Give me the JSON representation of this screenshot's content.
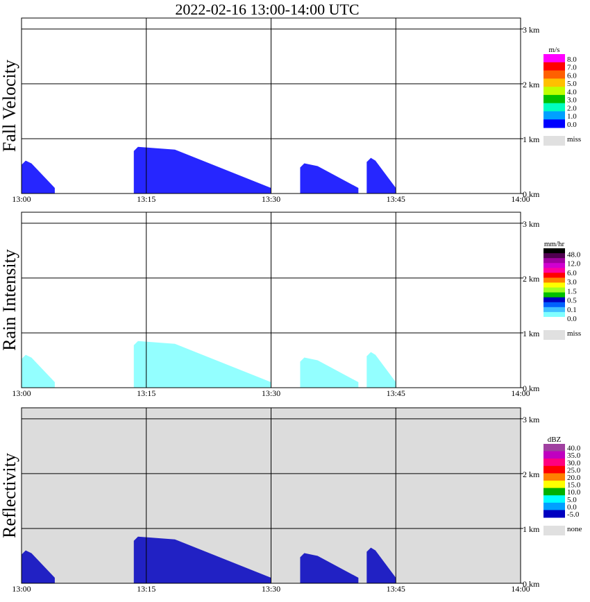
{
  "title": "2022-02-16  13:00-14:00 UTC",
  "chart_data": [
    {
      "type": "heatmap",
      "title": "Fall Velocity",
      "ylabel": "Fall Velocity",
      "x_ticks": [
        "13:00",
        "13:15",
        "13:30",
        "13:45",
        "14:00"
      ],
      "y_ticks": [
        "0 km",
        "1 km",
        "2 km",
        "3 km"
      ],
      "xlim_minutes": [
        0,
        60
      ],
      "ylim_km": [
        0,
        3.2
      ],
      "background": "#ffffff",
      "legend": {
        "unit": "m/s",
        "labels": [
          "8.0",
          "7.0",
          "6.0",
          "5.0",
          "4.0",
          "3.0",
          "2.0",
          "1.0",
          "0.0"
        ],
        "colors": [
          "#ff00ff",
          "#ff0000",
          "#ff6000",
          "#ffc000",
          "#c0ff00",
          "#00c000",
          "#00ffc0",
          "#00a0ff",
          "#0000ff"
        ],
        "miss_label": "miss",
        "miss_color": "#e0e0e0"
      },
      "echoes": [
        {
          "t0": 0,
          "t1": 4,
          "top": 0.6,
          "color": "#0000ff"
        },
        {
          "t0": 13.5,
          "t1": 30,
          "top": 0.85,
          "color": "#0000ff"
        },
        {
          "t0": 33.5,
          "t1": 40.5,
          "top": 0.55,
          "color": "#0000ff"
        },
        {
          "t0": 41.5,
          "t1": 45,
          "top": 0.65,
          "color": "#0000ff"
        }
      ]
    },
    {
      "type": "heatmap",
      "title": "Rain Intensity",
      "ylabel": "Rain Intensity",
      "x_ticks": [
        "13:00",
        "13:15",
        "13:30",
        "13:45",
        "14:00"
      ],
      "y_ticks": [
        "0 km",
        "1 km",
        "2 km",
        "3 km"
      ],
      "xlim_minutes": [
        0,
        60
      ],
      "ylim_km": [
        0,
        3.2
      ],
      "background": "#ffffff",
      "legend": {
        "unit": "mm/hr",
        "labels": [
          "48.0",
          "12.0",
          "6.0",
          "3.0",
          "1.5",
          "0.5",
          "0.1",
          "0.0"
        ],
        "colors": [
          "#000000",
          "#500050",
          "#a000a0",
          "#d000d0",
          "#ff00a0",
          "#ff0000",
          "#ff8000",
          "#ffff00",
          "#a0ff20",
          "#00c000",
          "#0000c0",
          "#0060ff",
          "#40c0ff",
          "#80ffff",
          "#ffffff"
        ],
        "miss_label": "miss",
        "miss_color": "#e0e0e0"
      },
      "echoes": [
        {
          "t0": 0,
          "t1": 4,
          "top": 0.6,
          "color": "#80ffff"
        },
        {
          "t0": 13.5,
          "t1": 30,
          "top": 0.85,
          "color": "#80ffff"
        },
        {
          "t0": 33.5,
          "t1": 40.5,
          "top": 0.55,
          "color": "#80ffff"
        },
        {
          "t0": 41.5,
          "t1": 45,
          "top": 0.65,
          "color": "#80ffff"
        }
      ]
    },
    {
      "type": "heatmap",
      "title": "Reflectivity",
      "ylabel": "Reflectivity",
      "x_ticks": [
        "13:00",
        "13:15",
        "13:30",
        "13:45",
        "14:00"
      ],
      "y_ticks": [
        "0 km",
        "1 km",
        "2 km",
        "3 km"
      ],
      "xlim_minutes": [
        0,
        60
      ],
      "ylim_km": [
        0,
        3.2
      ],
      "background": "#dcdcdc",
      "legend": {
        "unit": "dBZ",
        "labels": [
          "40.0",
          "35.0",
          "30.0",
          "25.0",
          "20.0",
          "15.0",
          "10.0",
          "5.0",
          "0.0",
          "-5.0"
        ],
        "colors": [
          "#a040a0",
          "#c000c0",
          "#ff0080",
          "#ff0000",
          "#ff8000",
          "#ffff00",
          "#00b000",
          "#00ffff",
          "#00a0ff",
          "#0000c0"
        ],
        "miss_label": "none",
        "miss_color": "#e0e0e0"
      },
      "echoes": [
        {
          "t0": 0,
          "t1": 4,
          "top": 0.6,
          "color": "#0000c0"
        },
        {
          "t0": 13.5,
          "t1": 30,
          "top": 0.85,
          "color": "#0000c0"
        },
        {
          "t0": 33.5,
          "t1": 40.5,
          "top": 0.55,
          "color": "#0000c0"
        },
        {
          "t0": 41.5,
          "t1": 45,
          "top": 0.65,
          "color": "#0000c0"
        }
      ]
    }
  ]
}
